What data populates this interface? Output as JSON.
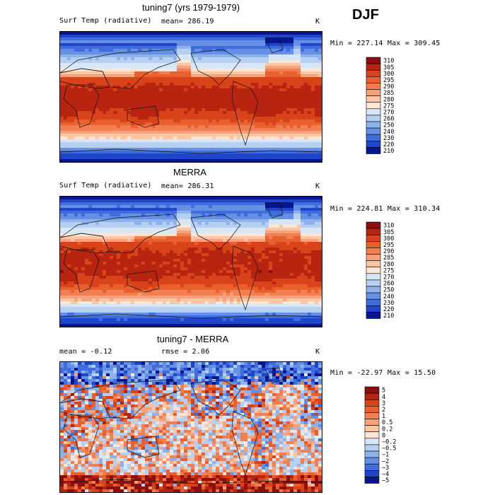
{
  "season": "DJF",
  "chart_data": [
    {
      "type": "heatmap",
      "title": "tuning7 (yrs 1979-1979)",
      "variable": "Surf Temp (radiative)",
      "mean_label": "mean=  286.19",
      "units": "K",
      "minmax_label": "Min = 227.14  Max = 309.45",
      "min": 227.14,
      "max": 309.45,
      "mean": 286.19,
      "levels": [
        "310",
        "305",
        "300",
        "295",
        "290",
        "285",
        "280",
        "275",
        "270",
        "260",
        "250",
        "240",
        "230",
        "220",
        "210"
      ],
      "colors": [
        "#8b0f0f",
        "#b72510",
        "#d9431a",
        "#e8602e",
        "#f27f52",
        "#f8a27b",
        "#fbc6a6",
        "#fde6d4",
        "#d8e7f7",
        "#b5d0f1",
        "#8db3ea",
        "#6690e4",
        "#3f6ddd",
        "#1f45c8",
        "#07158f"
      ]
    },
    {
      "type": "heatmap",
      "title": "MERRA",
      "variable": "Surf Temp (radiative)",
      "mean_label": "mean=  286.31",
      "units": "K",
      "minmax_label": "Min = 224.81  Max = 310.34",
      "min": 224.81,
      "max": 310.34,
      "mean": 286.31,
      "levels": [
        "310",
        "305",
        "300",
        "295",
        "290",
        "285",
        "280",
        "275",
        "270",
        "260",
        "250",
        "240",
        "230",
        "220",
        "210"
      ],
      "colors": [
        "#8b0f0f",
        "#b72510",
        "#d9431a",
        "#e8602e",
        "#f27f52",
        "#f8a27b",
        "#fbc6a6",
        "#fde6d4",
        "#d8e7f7",
        "#b5d0f1",
        "#8db3ea",
        "#6690e4",
        "#3f6ddd",
        "#1f45c8",
        "#07158f"
      ]
    },
    {
      "type": "heatmap",
      "title": "tuning7 - MERRA",
      "mean_label": "mean =   -0.12",
      "rmse_label": "rmse =    2.06",
      "units": "K",
      "minmax_label": "Min = -22.97  Max =  15.50",
      "min": -22.97,
      "max": 15.5,
      "mean": -0.12,
      "rmse": 2.06,
      "levels": [
        "5",
        "4",
        "3",
        "2",
        "1",
        "0.5",
        "0.2",
        "0",
        "−0.2",
        "−0.5",
        "−1",
        "−2",
        "−3",
        "−4",
        "−5"
      ],
      "colors": [
        "#8b0f0f",
        "#b72510",
        "#d9431a",
        "#e8602e",
        "#f27f52",
        "#f8a27b",
        "#fbc6a6",
        "#fde6d4",
        "#d8e7f7",
        "#b5d0f1",
        "#8db3ea",
        "#6690e4",
        "#3f6ddd",
        "#1f45c8",
        "#07158f"
      ]
    }
  ]
}
